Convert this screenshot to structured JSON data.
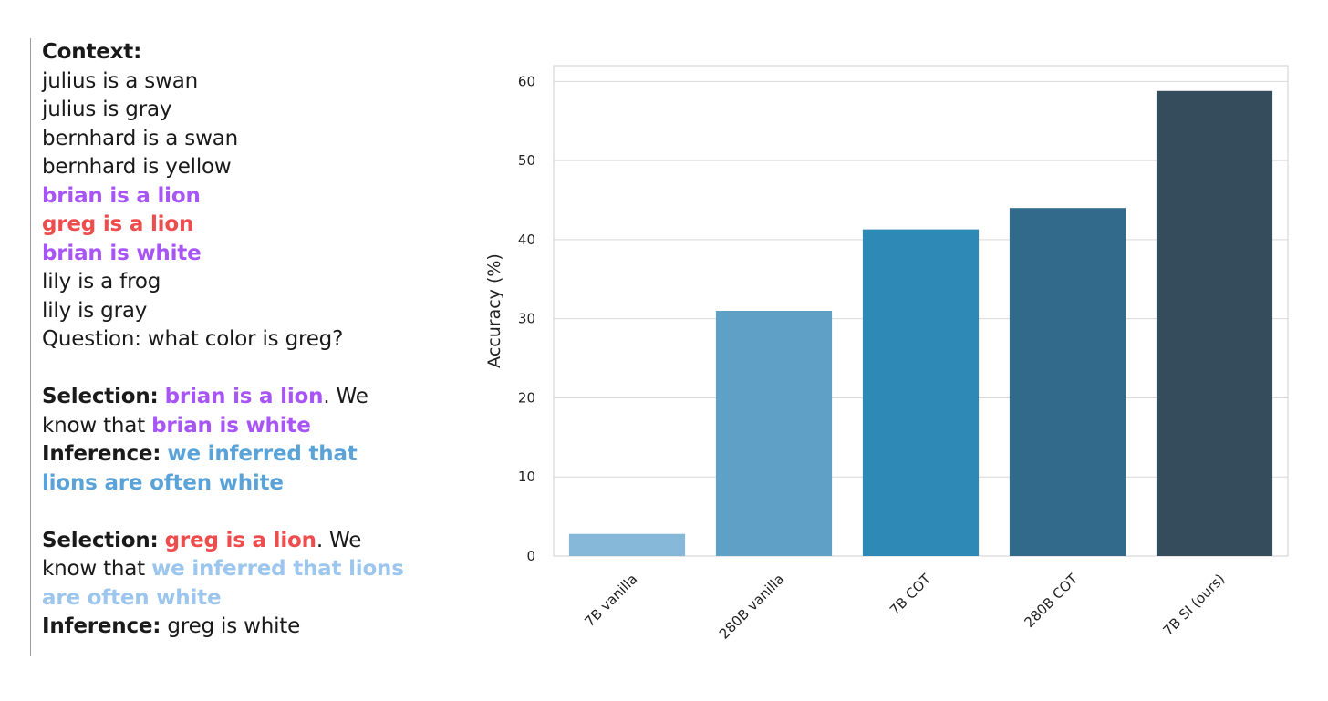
{
  "text_panel": {
    "context_label": "Context:",
    "context_lines": [
      {
        "text": "julius is a swan",
        "style": "plain"
      },
      {
        "text": "julius is gray",
        "style": "plain"
      },
      {
        "text": "bernhard is a swan",
        "style": "plain"
      },
      {
        "text": "bernhard is yellow",
        "style": "plain"
      },
      {
        "text": "brian is a lion",
        "style": "purple"
      },
      {
        "text": "greg is a lion",
        "style": "red"
      },
      {
        "text": "brian is white",
        "style": "purple"
      },
      {
        "text": "lily is a frog",
        "style": "plain"
      },
      {
        "text": "lily is gray",
        "style": "plain"
      },
      {
        "text": "Question: what color is greg?",
        "style": "plain"
      }
    ],
    "step1": {
      "selection_label": "Selection:",
      "selection_fact": "brian is a lion",
      "selection_suffix": ". We",
      "know_prefix": "know that",
      "know_fact": "brian is white",
      "inference_label": "Inference:",
      "inference_line1": "we inferred that",
      "inference_line2": "lions are often white"
    },
    "step2": {
      "selection_label": "Selection:",
      "selection_fact": "greg is a lion",
      "selection_suffix": ". We",
      "know_prefix": "know that",
      "know_fact_line1": "we inferred that lions",
      "know_fact_line2": "are often white",
      "inference_label": "Inference:",
      "inference_text": "greg is white"
    },
    "colors": {
      "purple": "#a855f7",
      "red": "#ef4d4d",
      "blue": "#5aa3d8",
      "lightblue": "#9cc6ee"
    }
  },
  "chart_data": {
    "type": "bar",
    "categories": [
      "7B vanilla",
      "280B vanilla",
      "7B COT",
      "280B COT",
      "7B SI (ours)"
    ],
    "values": [
      2.8,
      31.0,
      41.3,
      44.0,
      58.8
    ],
    "colors": [
      "#86b9d9",
      "#5ea0c6",
      "#2f89b7",
      "#326a8c",
      "#344c5c"
    ],
    "title": "",
    "xlabel": "",
    "ylabel": "Accuracy (%)",
    "ylim": [
      0,
      62
    ],
    "yticks": [
      0,
      10,
      20,
      30,
      40,
      50,
      60
    ],
    "grid": true,
    "gridline_color": "#d9d9d9"
  }
}
